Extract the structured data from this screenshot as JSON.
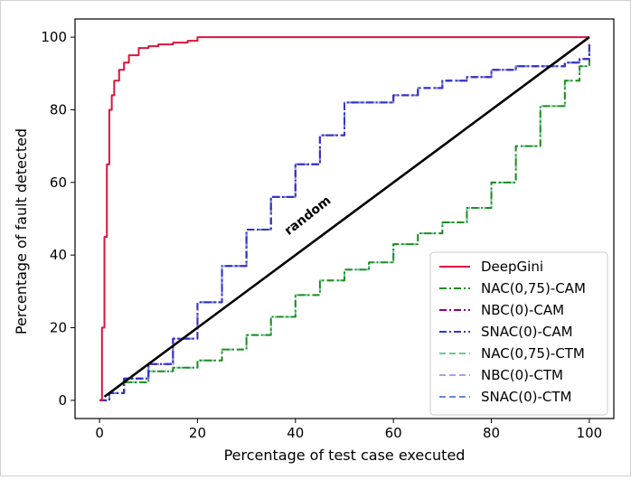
{
  "chart_data": {
    "type": "line",
    "title": "",
    "xlabel": "Percentage of test case executed",
    "ylabel": "Percentage of fault detected",
    "xlim": [
      -5,
      105
    ],
    "ylim": [
      -5,
      105
    ],
    "xticks": [
      "0",
      "20",
      "40",
      "60",
      "80",
      "100"
    ],
    "yticks": [
      "0",
      "20",
      "40",
      "60",
      "80",
      "100"
    ],
    "grid": false,
    "legend_position": "bottom-right",
    "annotation": {
      "text": "random",
      "x": 43,
      "y": 50,
      "angle": 38
    },
    "reference_line": {
      "name": "random",
      "x": [
        1,
        100
      ],
      "y": [
        1,
        100
      ],
      "color": "#000000"
    },
    "series": [
      {
        "name": "DeepGini",
        "color": "#dc143c",
        "dash": "solid",
        "x": [
          0,
          0.5,
          1,
          1.5,
          2,
          2.5,
          3,
          4,
          5,
          6,
          8,
          10,
          12,
          15,
          18,
          20,
          40,
          60,
          80,
          100
        ],
        "y": [
          0,
          20,
          45,
          65,
          80,
          84,
          88,
          91,
          93,
          95,
          97,
          97.5,
          98,
          98.5,
          99,
          100,
          100,
          100,
          100,
          100
        ]
      },
      {
        "name": "NAC(0,75)-CAM",
        "color": "#228b22",
        "dash": "dashdot",
        "x": [
          0,
          2,
          5,
          10,
          15,
          20,
          25,
          30,
          35,
          40,
          45,
          50,
          55,
          60,
          65,
          70,
          75,
          80,
          85,
          90,
          95,
          98,
          100
        ],
        "y": [
          0,
          2,
          5,
          8,
          9,
          11,
          14,
          18,
          23,
          29,
          33,
          36,
          38,
          43,
          46,
          49,
          53,
          60,
          70,
          81,
          88,
          92,
          98
        ]
      },
      {
        "name": "NBC(0)-CAM",
        "color": "#8b008b",
        "dash": "dashdot",
        "x": [
          0,
          2,
          5,
          10,
          15,
          20,
          25,
          30,
          35,
          40,
          45,
          50,
          55,
          60,
          65,
          70,
          75,
          80,
          85,
          90,
          95,
          98,
          100
        ],
        "y": [
          0,
          2,
          6,
          10,
          17,
          27,
          37,
          47,
          56,
          65,
          73,
          82,
          82,
          84,
          86,
          88,
          89,
          91,
          92,
          92,
          93,
          94,
          98
        ]
      },
      {
        "name": "SNAC(0)-CAM",
        "color": "#3333cc",
        "dash": "dashdot",
        "x": [
          0,
          2,
          5,
          10,
          15,
          20,
          25,
          30,
          35,
          40,
          45,
          50,
          55,
          60,
          65,
          70,
          75,
          80,
          85,
          90,
          95,
          98,
          100
        ],
        "y": [
          0,
          2,
          6,
          10,
          17,
          27,
          37,
          47,
          56,
          65,
          73,
          82,
          82,
          84,
          86,
          88,
          89,
          91,
          92,
          92,
          93,
          94,
          98
        ]
      },
      {
        "name": "NAC(0,75)-CTM",
        "color": "#66cc99",
        "dash": "dashed",
        "x": [
          0,
          2,
          5,
          10,
          15,
          20,
          25,
          30,
          35,
          40,
          45,
          50,
          55,
          60,
          65,
          70,
          75,
          80,
          85,
          90,
          95,
          98,
          100
        ],
        "y": [
          0,
          2,
          5,
          8,
          9,
          11,
          14,
          18,
          23,
          29,
          33,
          36,
          38,
          43,
          46,
          49,
          53,
          60,
          70,
          81,
          88,
          92,
          98
        ]
      },
      {
        "name": "NBC(0)-CTM",
        "color": "#b399ee",
        "dash": "dashed",
        "x": [
          0,
          2,
          5,
          10,
          15,
          20,
          25,
          30,
          35,
          40,
          45,
          50,
          55,
          60,
          65,
          70,
          75,
          80,
          85,
          90,
          95,
          98,
          100
        ],
        "y": [
          0,
          2,
          6,
          10,
          17,
          27,
          37,
          47,
          56,
          65,
          73,
          82,
          82,
          84,
          86,
          88,
          89,
          91,
          92,
          92,
          93,
          94,
          98
        ]
      },
      {
        "name": "SNAC(0)-CTM",
        "color": "#6688dd",
        "dash": "dashed",
        "x": [
          0,
          2,
          5,
          10,
          15,
          20,
          25,
          30,
          35,
          40,
          45,
          50,
          55,
          60,
          65,
          70,
          75,
          80,
          85,
          90,
          95,
          98,
          100
        ],
        "y": [
          0,
          2,
          6,
          10,
          17,
          27,
          37,
          47,
          56,
          65,
          73,
          82,
          82,
          84,
          86,
          88,
          89,
          91,
          92,
          92,
          93,
          94,
          98
        ]
      }
    ]
  }
}
